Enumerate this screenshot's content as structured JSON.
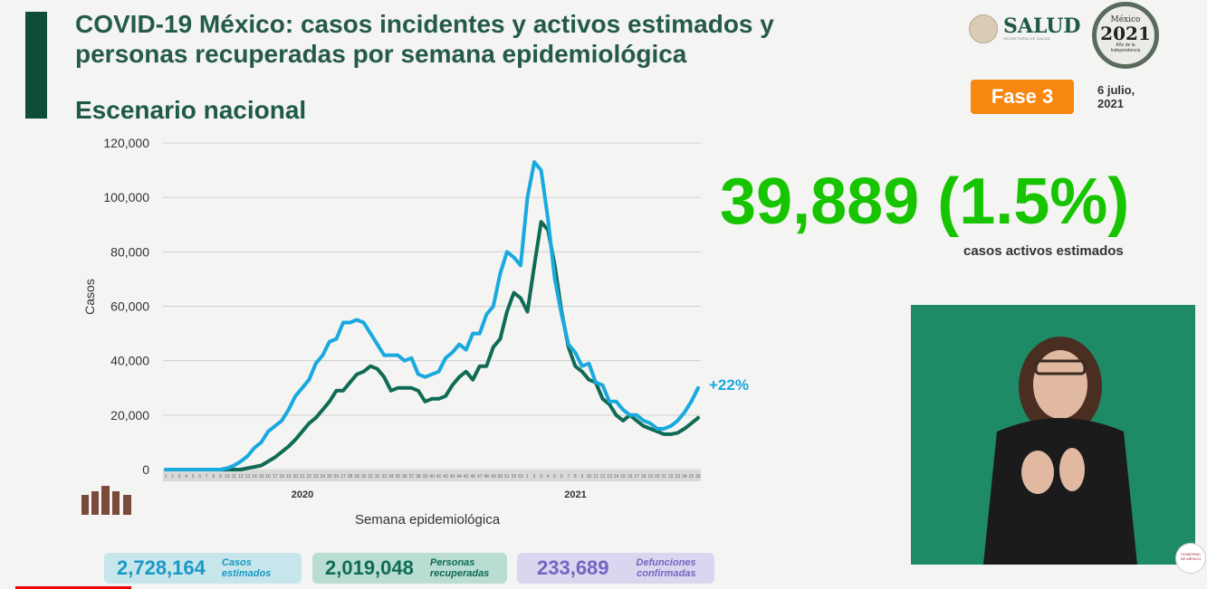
{
  "header": {
    "title_line1": "COVID-19 México: casos incidentes y activos estimados y",
    "title_line2": "personas recuperadas por semana epidemiológica",
    "subtitle": "Escenario nacional",
    "salud_logo": "SALUD",
    "salud_sub": "SECRETARÍA DE SALUD",
    "logo2021": {
      "line1": "México",
      "line2": "2021",
      "line3": "Año de la Independencia"
    },
    "phase": "Fase 3",
    "date_line1": "6 julio,",
    "date_line2": "2021"
  },
  "highlight": {
    "value": "39,889 (1.5%)",
    "label": "casos activos estimados"
  },
  "stats": [
    {
      "value": "2,728,164",
      "label_line1": "Casos",
      "label_line2": "estimados"
    },
    {
      "value": "2,019,048",
      "label_line1": "Personas",
      "label_line2": "recuperadas"
    },
    {
      "value": "233,689",
      "label_line1": "Defunciones",
      "label_line2": "confirmadas"
    }
  ],
  "footer_seal": "GOBIERNO DE MÉXICO",
  "colors": {
    "incident": "#19a9df",
    "active": "#0f6b55",
    "highlight": "#16c400",
    "phase": "#f7870f"
  },
  "chart_data": {
    "type": "line",
    "xlabel": "Semana epidemiológica",
    "ylabel": "Casos",
    "ylim": [
      0,
      120000
    ],
    "yticks": [
      "0",
      "20,000",
      "40,000",
      "60,000",
      "80,000",
      "100,000",
      "120,000"
    ],
    "grid": true,
    "year_labels": [
      {
        "label": "2020",
        "week_index": 26
      },
      {
        "label": "2021",
        "week_index": 66
      }
    ],
    "categories": [
      "1",
      "2",
      "3",
      "4",
      "5",
      "6",
      "7",
      "8",
      "9",
      "10",
      "11",
      "12",
      "13",
      "14",
      "15",
      "16",
      "17",
      "18",
      "19",
      "20",
      "21",
      "22",
      "23",
      "24",
      "25",
      "26",
      "27",
      "28",
      "29",
      "30",
      "31",
      "32",
      "33",
      "34",
      "35",
      "36",
      "37",
      "38",
      "39",
      "40",
      "41",
      "42",
      "43",
      "44",
      "45",
      "46",
      "47",
      "48",
      "49",
      "50",
      "51",
      "52",
      "53",
      "1",
      "2",
      "3",
      "4",
      "5",
      "6",
      "7",
      "8",
      "9",
      "10",
      "11",
      "12",
      "13",
      "14",
      "15",
      "16",
      "17",
      "18",
      "19",
      "20",
      "21",
      "22",
      "23",
      "24",
      "25",
      "26"
    ],
    "series": [
      {
        "values": [
          0,
          0,
          0,
          0,
          0,
          0,
          0,
          0,
          0,
          500,
          1500,
          3000,
          5000,
          8000,
          10000,
          14000,
          16000,
          18000,
          22000,
          27000,
          30000,
          33000,
          39000,
          42000,
          47000,
          48000,
          54000,
          54000,
          55000,
          54000,
          50000,
          46000,
          42000,
          42000,
          42000,
          40000,
          41000,
          35000,
          34000,
          35000,
          36000,
          41000,
          43000,
          46000,
          44000,
          50000,
          50000,
          57000,
          60000,
          72000,
          80000,
          78000,
          75000,
          100000,
          113000,
          110000,
          92000,
          70000,
          57000,
          46000,
          43000,
          38000,
          39000,
          32000,
          31000,
          25000,
          25000,
          22000,
          20000,
          20000,
          18000,
          17000,
          15000,
          15000,
          16000,
          18000,
          21000,
          25000,
          30000
        ],
        "color": "#19a9df",
        "end_label": "+22%"
      },
      {
        "values": [
          0,
          0,
          0,
          0,
          0,
          0,
          0,
          0,
          0,
          0,
          0,
          0,
          500,
          1000,
          1500,
          3000,
          4500,
          6500,
          8500,
          11000,
          14000,
          17000,
          19000,
          22000,
          25000,
          29000,
          29000,
          32000,
          35000,
          36000,
          38000,
          37000,
          34000,
          29000,
          30000,
          30000,
          30000,
          29000,
          25000,
          26000,
          26000,
          27000,
          31000,
          34000,
          36000,
          33000,
          38000,
          38000,
          45000,
          48000,
          58000,
          65000,
          63000,
          58000,
          75000,
          91000,
          88000,
          75000,
          58000,
          45000,
          38000,
          36000,
          33000,
          32000,
          26000,
          24000,
          20000,
          18000,
          20000,
          18000,
          16000,
          15000,
          14000,
          13000,
          13000,
          13500,
          15000,
          17000,
          19000
        ],
        "color": "#0f6b55"
      }
    ]
  }
}
